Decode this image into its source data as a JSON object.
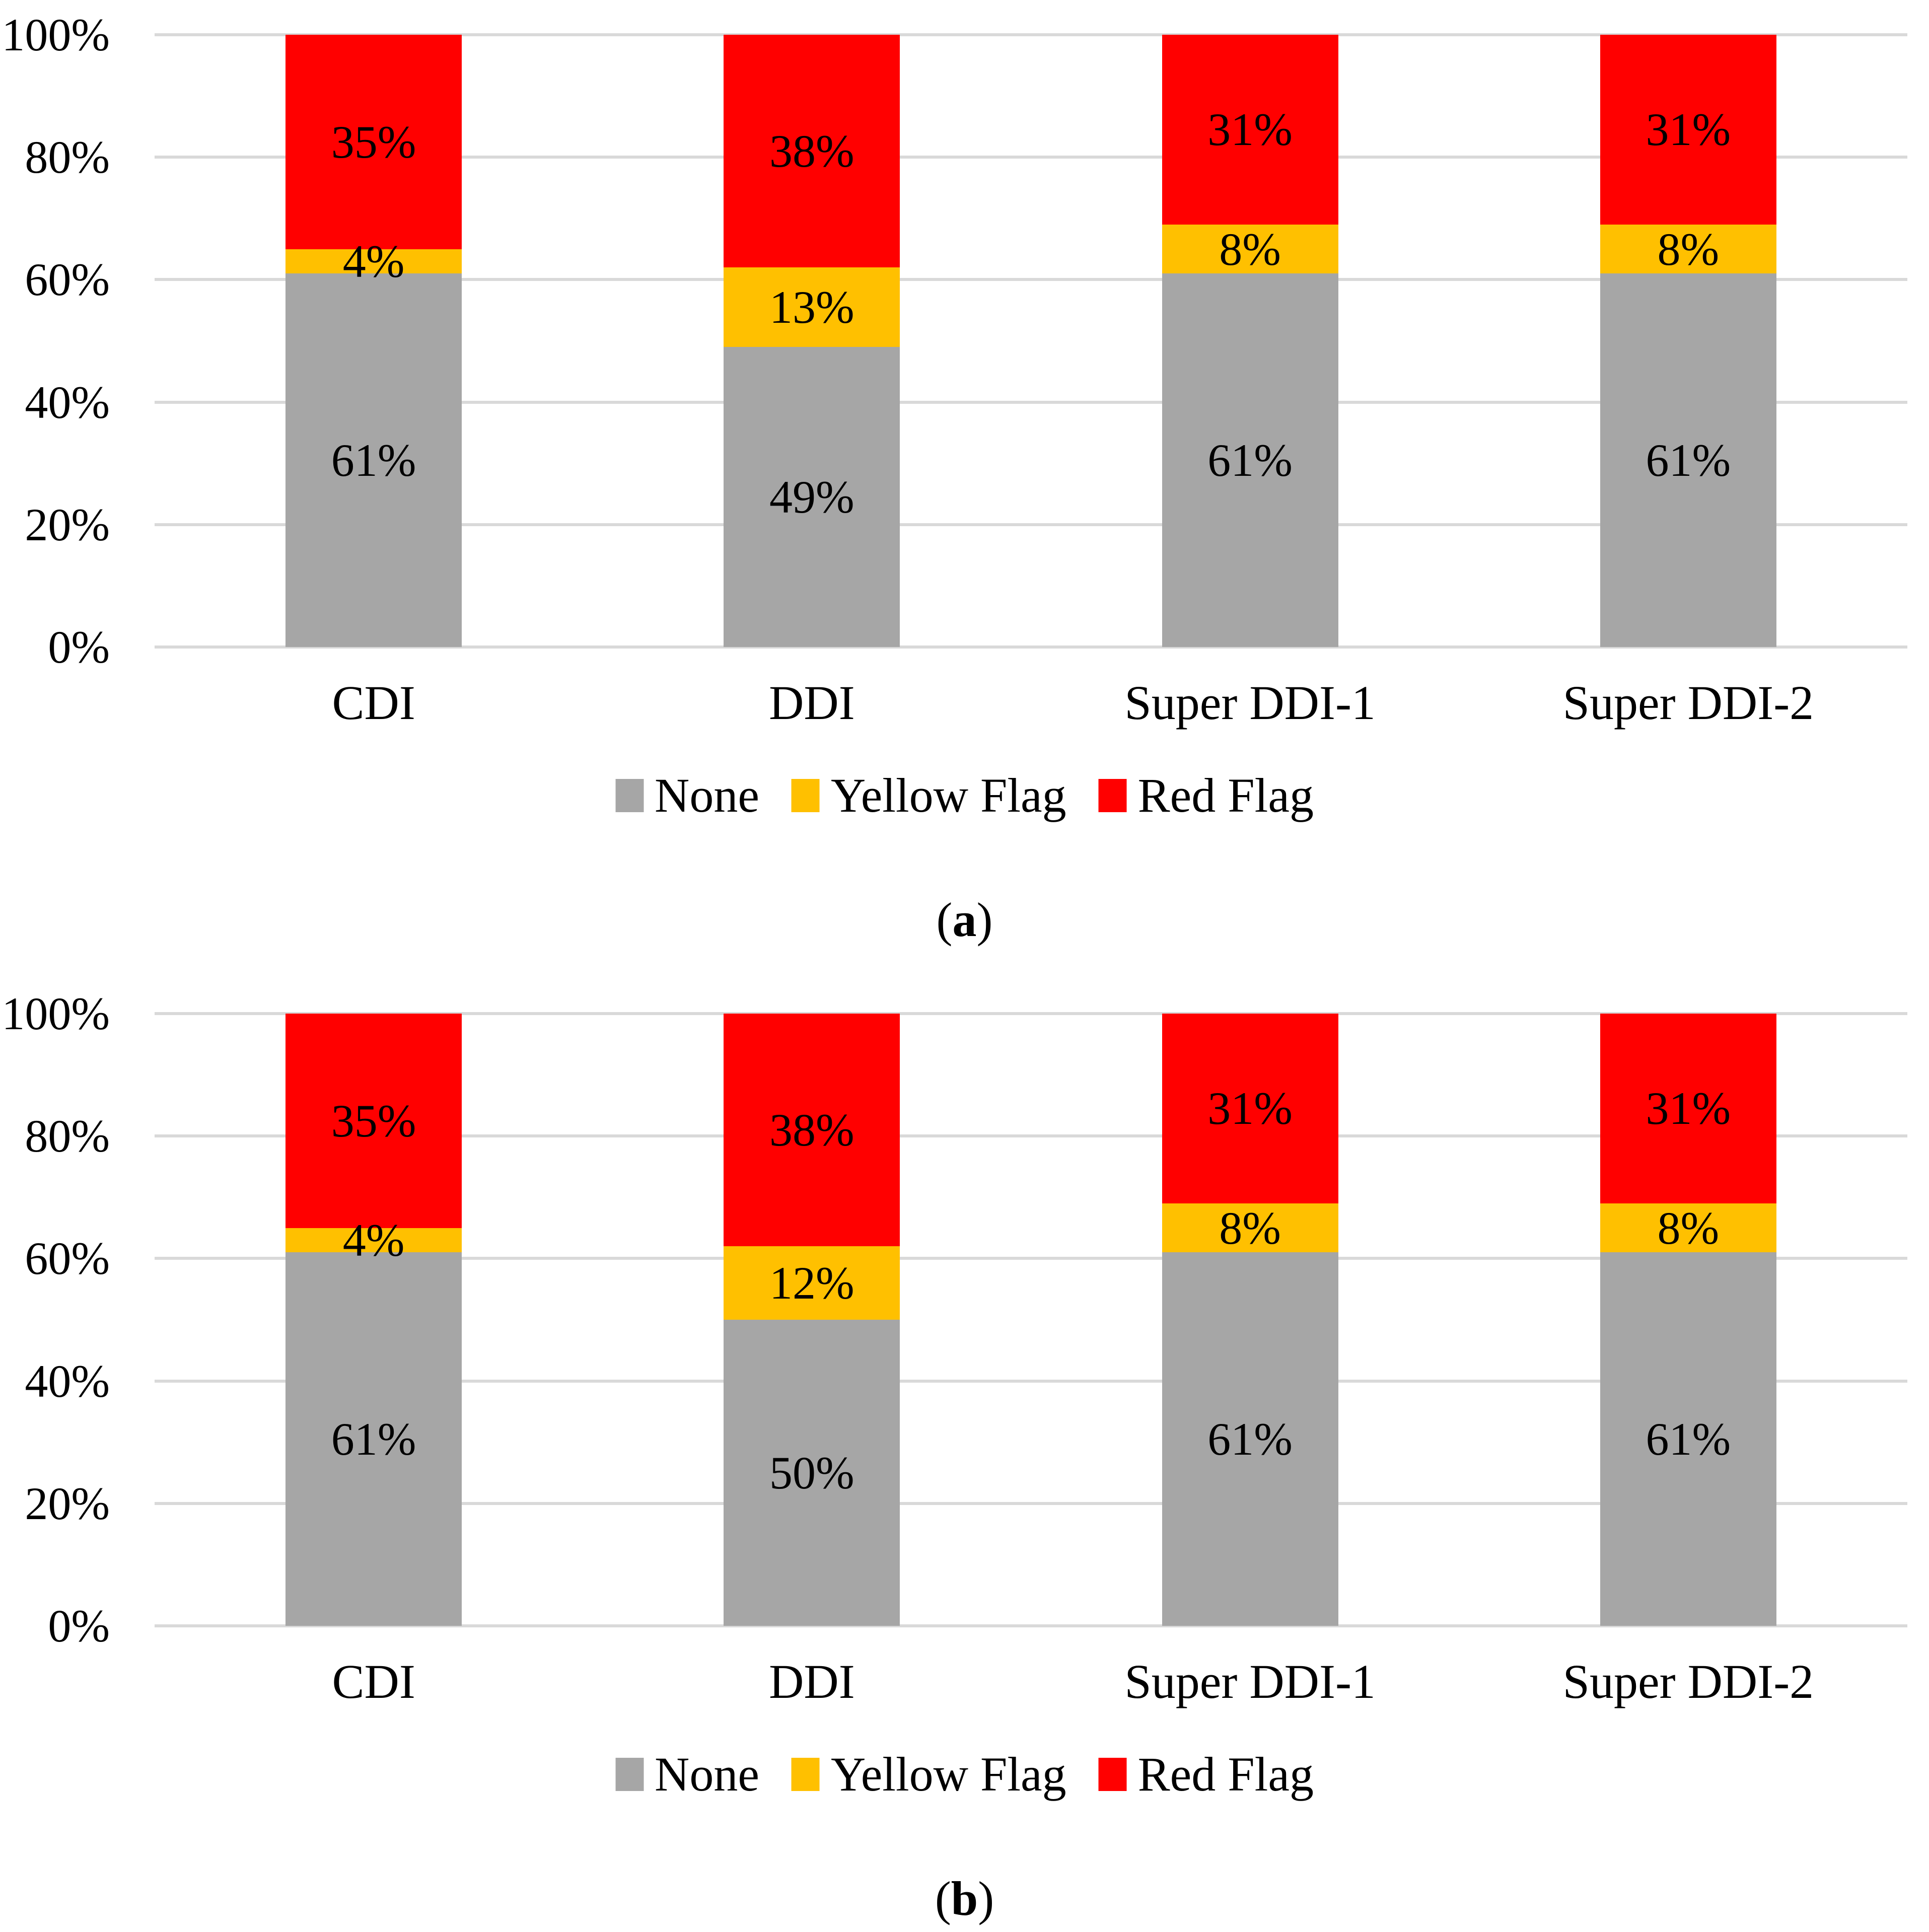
{
  "figure": {
    "background": "#FFFFFF",
    "text_color": "#000000",
    "gridline_color": "#D9D9D9"
  },
  "chart_data": [
    {
      "type": "bar",
      "stacked": true,
      "panel": "a",
      "caption": "(a)",
      "caption_letter": "a",
      "title": "",
      "xlabel": "",
      "ylabel": "",
      "ylim": [
        0,
        100
      ],
      "grid": true,
      "legend_position": "bottom",
      "y_ticks": [
        "0%",
        "20%",
        "40%",
        "60%",
        "80%",
        "100%"
      ],
      "categories": [
        "CDI",
        "DDI",
        "Super DDI-1",
        "Super DDI-2"
      ],
      "series": [
        {
          "name": "None",
          "color": "#A6A6A6",
          "values": [
            61,
            49,
            61,
            61
          ],
          "labels": [
            "61%",
            "49%",
            "61%",
            "61%"
          ]
        },
        {
          "name": "Yellow Flag",
          "color": "#FFC000",
          "values": [
            4,
            13,
            8,
            8
          ],
          "labels": [
            "4%",
            "13%",
            "8%",
            "8%"
          ]
        },
        {
          "name": "Red Flag",
          "color": "#FF0000",
          "values": [
            35,
            38,
            31,
            31
          ],
          "labels": [
            "35%",
            "38%",
            "31%",
            "31%"
          ]
        }
      ]
    },
    {
      "type": "bar",
      "stacked": true,
      "panel": "b",
      "caption": "(b)",
      "caption_letter": "b",
      "title": "",
      "xlabel": "",
      "ylabel": "",
      "ylim": [
        0,
        100
      ],
      "grid": true,
      "legend_position": "bottom",
      "y_ticks": [
        "0%",
        "20%",
        "40%",
        "60%",
        "80%",
        "100%"
      ],
      "categories": [
        "CDI",
        "DDI",
        "Super DDI-1",
        "Super DDI-2"
      ],
      "series": [
        {
          "name": "None",
          "color": "#A6A6A6",
          "values": [
            61,
            50,
            61,
            61
          ],
          "labels": [
            "61%",
            "50%",
            "61%",
            "61%"
          ]
        },
        {
          "name": "Yellow Flag",
          "color": "#FFC000",
          "values": [
            4,
            12,
            8,
            8
          ],
          "labels": [
            "4%",
            "12%",
            "8%",
            "8%"
          ]
        },
        {
          "name": "Red Flag",
          "color": "#FF0000",
          "values": [
            35,
            38,
            31,
            31
          ],
          "labels": [
            "35%",
            "38%",
            "31%",
            "31%"
          ]
        }
      ]
    }
  ]
}
